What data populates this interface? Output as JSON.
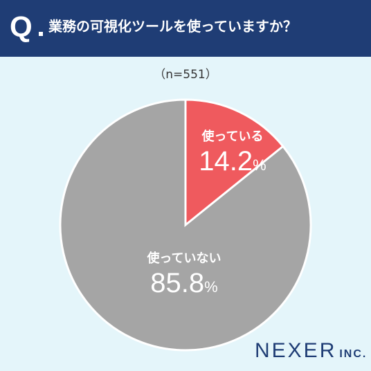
{
  "header": {
    "q_mark": "Q",
    "question": "業務の可視化ツールを使っていますか？"
  },
  "sample": "（n=551）",
  "chart_data": {
    "type": "pie",
    "categories": [
      "使っている",
      "使っていない"
    ],
    "values": [
      14.2,
      85.8
    ],
    "unit": "%",
    "colors": [
      "#ef5a5e",
      "#a5a5a5"
    ],
    "value_labels": [
      "14.2",
      "85.8"
    ]
  },
  "logo": {
    "name": "NEXER",
    "suffix": "INC."
  }
}
